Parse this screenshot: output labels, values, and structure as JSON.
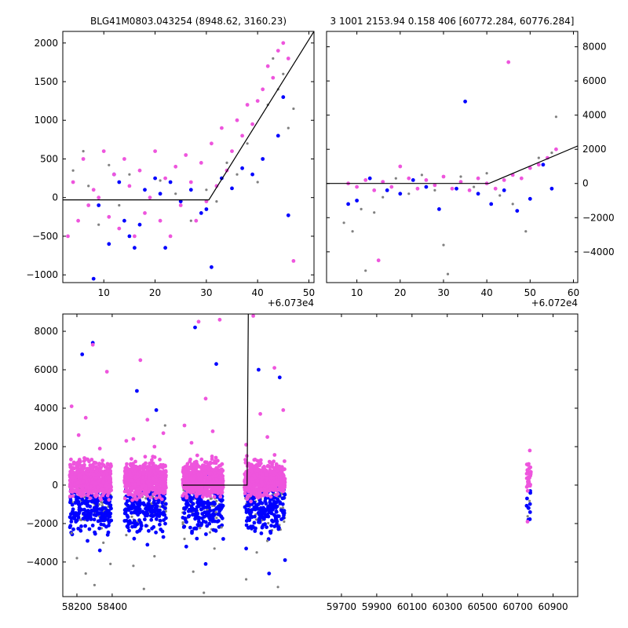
{
  "figure": {
    "titles": [
      "BLG41M0803.043254 (8948.62, 3160.23)",
      "3 1001 2153.94 0.158 406 [60772.284, 60776.284]"
    ],
    "colors": {
      "grey": "#808080",
      "blue": "#0000ff",
      "magenta": "#ee55dd",
      "line": "#000000"
    }
  },
  "chart_data": [
    {
      "type": "scatter",
      "panel": "top-left",
      "title": "BLG41M0803.043254 (8948.62, 3160.23)",
      "x_offset_label": "+6.073e4",
      "xlim": [
        2,
        51
      ],
      "ylim": [
        -1100,
        2150
      ],
      "x_ticks": [
        "10",
        "20",
        "30",
        "40",
        "50"
      ],
      "y_ticks": [
        "−1000",
        "−500",
        "0",
        "500",
        "1000",
        "1500",
        "2000"
      ],
      "y_axis_side": "left",
      "model_line": {
        "x": [
          2,
          30.5,
          51
        ],
        "y": [
          -30,
          -30,
          2150
        ]
      },
      "series": [
        {
          "color": "grey",
          "x": [
            4,
            6,
            7,
            9,
            11,
            13,
            15,
            18,
            21,
            24,
            27,
            30,
            32,
            34,
            36,
            38,
            40,
            42,
            43,
            44,
            45,
            46,
            47
          ],
          "y": [
            350,
            600,
            150,
            -350,
            420,
            -100,
            300,
            -200,
            220,
            50,
            -300,
            100,
            -50,
            450,
            300,
            700,
            200,
            1200,
            1800,
            1400,
            1600,
            900,
            1150
          ]
        },
        {
          "color": "blue",
          "x": [
            8,
            9,
            11,
            12,
            13,
            14,
            15,
            16,
            17,
            18,
            20,
            21,
            22,
            23,
            25,
            27,
            29,
            30,
            31,
            33,
            35,
            37,
            39,
            41,
            44,
            45,
            46
          ],
          "y": [
            -1050,
            -100,
            -600,
            300,
            200,
            -300,
            -500,
            -650,
            -350,
            100,
            250,
            50,
            -650,
            200,
            -50,
            100,
            -200,
            -150,
            -900,
            250,
            120,
            380,
            300,
            500,
            800,
            1300,
            -230
          ]
        },
        {
          "color": "magenta",
          "x": [
            3,
            4,
            5,
            6,
            7,
            8,
            9,
            10,
            11,
            12,
            13,
            14,
            15,
            16,
            17,
            18,
            19,
            20,
            21,
            22,
            23,
            24,
            25,
            26,
            27,
            28,
            29,
            30,
            31,
            32,
            33,
            34,
            35,
            36,
            37,
            38,
            39,
            40,
            41,
            42,
            43,
            44,
            45,
            46,
            47
          ],
          "y": [
            -500,
            200,
            -300,
            500,
            -100,
            100,
            0,
            600,
            -250,
            300,
            -400,
            500,
            150,
            -500,
            350,
            -200,
            0,
            600,
            -300,
            250,
            -500,
            400,
            -100,
            550,
            200,
            -300,
            450,
            -50,
            700,
            150,
            900,
            350,
            600,
            1000,
            800,
            1200,
            950,
            1250,
            1400,
            1700,
            1550,
            1900,
            2000,
            1800,
            -820
          ]
        }
      ]
    },
    {
      "type": "scatter",
      "panel": "top-right",
      "title": "3 1001 2153.94 0.158 406 [60772.284, 60776.284]",
      "x_offset_label": "+6.072e4",
      "xlim": [
        3,
        61
      ],
      "ylim": [
        -5800,
        8900
      ],
      "x_ticks": [
        "10",
        "20",
        "30",
        "40",
        "50",
        "60"
      ],
      "y_ticks": [
        "−4000",
        "−2000",
        "0",
        "2000",
        "4000",
        "6000",
        "8000"
      ],
      "y_axis_side": "right",
      "model_line": {
        "x": [
          3,
          40.5,
          61
        ],
        "y": [
          0,
          0,
          2200
        ]
      },
      "series": [
        {
          "color": "grey",
          "x": [
            7,
            9,
            11,
            12,
            14,
            16,
            19,
            22,
            25,
            28,
            30,
            31,
            34,
            37,
            40,
            43,
            46,
            49,
            52,
            55,
            56
          ],
          "y": [
            -2300,
            -2800,
            -1500,
            -5100,
            -1700,
            -800,
            300,
            -600,
            500,
            -400,
            -3600,
            -5300,
            400,
            -200,
            600,
            -700,
            -1200,
            -2800,
            1500,
            1800,
            3900
          ]
        },
        {
          "color": "blue",
          "x": [
            8,
            10,
            13,
            17,
            20,
            23,
            26,
            29,
            33,
            35,
            38,
            41,
            44,
            47,
            50,
            53,
            55
          ],
          "y": [
            -1200,
            -1000,
            300,
            -400,
            -600,
            200,
            -200,
            -1500,
            -300,
            4800,
            -600,
            -1200,
            -400,
            -1600,
            -900,
            1100,
            -300
          ]
        },
        {
          "color": "magenta",
          "x": [
            8,
            10,
            12,
            14,
            15,
            16,
            18,
            20,
            22,
            24,
            26,
            28,
            30,
            32,
            34,
            36,
            38,
            40,
            42,
            44,
            45,
            46,
            48,
            50,
            52,
            54,
            56
          ],
          "y": [
            0,
            -200,
            200,
            -400,
            -4500,
            100,
            -200,
            1000,
            300,
            -300,
            200,
            -100,
            400,
            -300,
            100,
            -400,
            300,
            0,
            -300,
            200,
            7100,
            500,
            300,
            900,
            1100,
            1500,
            2000
          ]
        }
      ]
    },
    {
      "type": "scatter",
      "panel": "bottom",
      "xlim": [
        58120,
        61040
      ],
      "ylim": [
        -5800,
        8900
      ],
      "x_tick_values": [
        58200,
        58400,
        59700,
        59900,
        60100,
        60300,
        60500,
        60700,
        60900
      ],
      "x_ticks": [
        "58200",
        "58400",
        "59700",
        "59900",
        "60100",
        "60300",
        "60500",
        "60700",
        "60900"
      ],
      "y_ticks": [
        "−4000",
        "−2000",
        "0",
        "2000",
        "4000",
        "6000",
        "8000"
      ],
      "y_axis_side": "left",
      "season_x_ranges": [
        [
          58160,
          58395
        ],
        [
          58470,
          58705
        ],
        [
          58800,
          59030
        ],
        [
          59150,
          59380
        ],
        [
          60750,
          60775
        ]
      ],
      "model_line": {
        "x": [
          58800,
          59165,
          59172
        ],
        "y": [
          0,
          0,
          8900
        ]
      },
      "series": [
        {
          "color": "grey",
          "x": [
            58170,
            58200,
            58250,
            58300,
            58350,
            58390,
            58480,
            58520,
            58580,
            58640,
            58700,
            58810,
            58860,
            58920,
            58980,
            59020,
            59160,
            59220,
            59280,
            59340,
            59375
          ],
          "y": [
            -2500,
            -3800,
            -4600,
            -5200,
            -3000,
            -4100,
            -2600,
            -4200,
            -5400,
            -3700,
            3100,
            -2800,
            -4500,
            -5600,
            -3300,
            -2200,
            -4900,
            -3500,
            -2900,
            -5300,
            -1900
          ]
        },
        {
          "color": "blue",
          "x": [
            58180,
            58230,
            58260,
            58290,
            58330,
            58380,
            58490,
            58540,
            58600,
            58650,
            58690,
            58820,
            58870,
            58930,
            58990,
            59030,
            59160,
            59230,
            59290,
            59350,
            59380,
            60760
          ],
          "y": [
            -2300,
            6800,
            -2900,
            7400,
            -3400,
            -2100,
            -2200,
            4900,
            -3100,
            3900,
            -2700,
            -3200,
            8200,
            -4100,
            6300,
            -2800,
            -3300,
            6000,
            -4600,
            5600,
            -3900,
            -1800
          ]
        },
        {
          "color": "magenta",
          "x": [
            58170,
            58210,
            58250,
            58290,
            58330,
            58370,
            58480,
            58520,
            58560,
            58600,
            58640,
            58690,
            58810,
            58850,
            58890,
            58930,
            58970,
            59010,
            59160,
            59200,
            59240,
            59280,
            59320,
            59370,
            60755,
            60762,
            60768
          ],
          "y": [
            4100,
            2600,
            3500,
            7300,
            1900,
            5900,
            2300,
            2400,
            6500,
            3400,
            2000,
            2700,
            3100,
            2200,
            8500,
            4500,
            2800,
            8600,
            2100,
            8800,
            3700,
            2500,
            6100,
            3900,
            -1900,
            1100,
            1800
          ]
        }
      ]
    }
  ]
}
